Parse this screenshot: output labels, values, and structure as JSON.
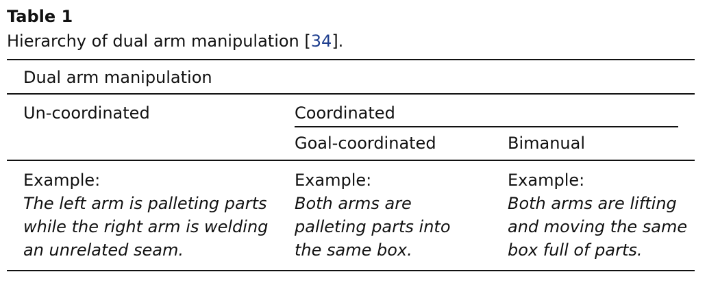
{
  "caption": {
    "title": "Table 1",
    "text_before_ref": "Hierarchy of dual arm manipulation [",
    "ref": "34",
    "text_after_ref": "]."
  },
  "table": {
    "header_top": "Dual arm manipulation",
    "col_uncoordinated": "Un-coordinated",
    "col_coordinated": "Coordinated",
    "sub_goal": "Goal-coordinated",
    "sub_bimanual": "Bimanual",
    "example_label": "Example:",
    "examples": [
      {
        "lines": [
          "The left arm is palleting parts",
          "while the right arm is welding",
          "an unrelated seam."
        ]
      },
      {
        "lines": [
          "Both arms are",
          "palleting parts into",
          "the same box."
        ]
      },
      {
        "lines": [
          "Both arms are lifting",
          "and moving the same",
          "box full of parts."
        ]
      }
    ]
  }
}
